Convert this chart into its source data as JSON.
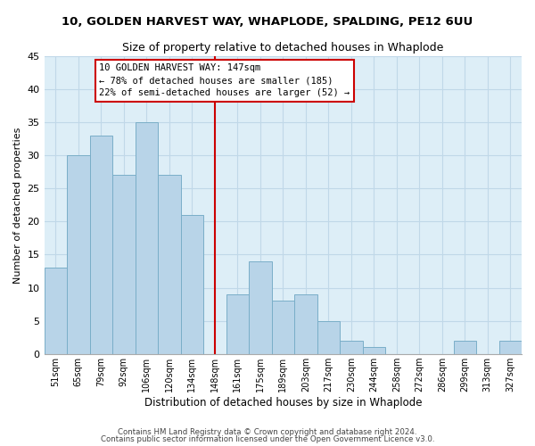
{
  "title": "10, GOLDEN HARVEST WAY, WHAPLODE, SPALDING, PE12 6UU",
  "subtitle": "Size of property relative to detached houses in Whaplode",
  "xlabel": "Distribution of detached houses by size in Whaplode",
  "ylabel": "Number of detached properties",
  "bar_labels": [
    "51sqm",
    "65sqm",
    "79sqm",
    "92sqm",
    "106sqm",
    "120sqm",
    "134sqm",
    "148sqm",
    "161sqm",
    "175sqm",
    "189sqm",
    "203sqm",
    "217sqm",
    "230sqm",
    "244sqm",
    "258sqm",
    "272sqm",
    "286sqm",
    "299sqm",
    "313sqm",
    "327sqm"
  ],
  "bar_values": [
    13,
    30,
    33,
    27,
    35,
    27,
    21,
    0,
    9,
    14,
    8,
    9,
    5,
    2,
    1,
    0,
    0,
    0,
    2,
    0,
    2
  ],
  "bar_color": "#b8d4e8",
  "bar_edge_color": "#7aaec8",
  "vline_color": "#cc0000",
  "ylim": [
    0,
    45
  ],
  "yticks": [
    0,
    5,
    10,
    15,
    20,
    25,
    30,
    35,
    40,
    45
  ],
  "annotation_lines": [
    "10 GOLDEN HARVEST WAY: 147sqm",
    "← 78% of detached houses are smaller (185)",
    "22% of semi-detached houses are larger (52) →"
  ],
  "annotation_box_color": "#ffffff",
  "annotation_box_edge": "#cc0000",
  "footer_line1": "Contains HM Land Registry data © Crown copyright and database right 2024.",
  "footer_line2": "Contains public sector information licensed under the Open Government Licence v3.0.",
  "background_color": "#ffffff",
  "plot_bg_color": "#ddeef7",
  "grid_color": "#c0d8e8"
}
